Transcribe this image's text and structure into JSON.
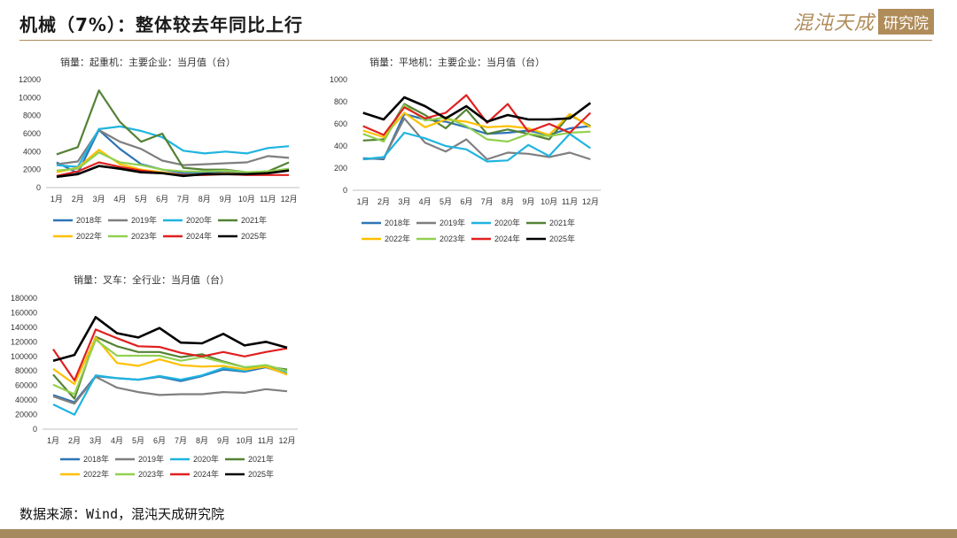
{
  "header": {
    "title": "机械（7%）：整体较去年同比上行",
    "logo_script": "混沌天成",
    "logo_box": "研究院"
  },
  "source": "数据来源：Wind，混沌天成研究院",
  "colors": {
    "2018年": "#2e75b6",
    "2019年": "#7f7f7f",
    "2020年": "#1fb4e0",
    "2021年": "#548235",
    "2022年": "#ffc000",
    "2023年": "#92d050",
    "2024年": "#e02020",
    "2025年": "#000000"
  },
  "chart_data": [
    {
      "type": "line",
      "title": "销量：起重机：主要企业：当月值（台）",
      "categories": [
        "1月",
        "2月",
        "3月",
        "4月",
        "5月",
        "6月",
        "7月",
        "8月",
        "9月",
        "10月",
        "11月",
        "12月"
      ],
      "ylim": [
        0,
        12000
      ],
      "yticks": [
        0,
        2000,
        4000,
        6000,
        8000,
        10000,
        12000
      ],
      "legend_position": "bottom",
      "series": [
        {
          "name": "2018年",
          "values": [
            2800,
            1600,
            6400,
            4300,
            2600,
            2000,
            1600,
            1600,
            1700,
            1500,
            1600,
            null
          ]
        },
        {
          "name": "2019年",
          "values": [
            2600,
            2900,
            6400,
            5100,
            4300,
            3000,
            2500,
            2600,
            2700,
            2800,
            3500,
            3300
          ]
        },
        {
          "name": "2020年",
          "values": [
            2500,
            2300,
            6500,
            6800,
            6300,
            5600,
            4100,
            3800,
            4000,
            3800,
            4400,
            4600
          ]
        },
        {
          "name": "2021年",
          "values": [
            3700,
            4500,
            10800,
            7300,
            5100,
            6000,
            2200,
            2000,
            2000,
            1700,
            1800,
            2800
          ]
        },
        {
          "name": "2022年",
          "values": [
            1700,
            2200,
            4200,
            2600,
            2000,
            1700,
            1400,
            1500,
            1600,
            1500,
            1600,
            1900
          ]
        },
        {
          "name": "2023年",
          "values": [
            1900,
            2100,
            3900,
            2800,
            2500,
            2000,
            1800,
            1800,
            1900,
            1700,
            1800,
            2100
          ]
        },
        {
          "name": "2024年",
          "values": [
            1300,
            1800,
            2800,
            2300,
            1900,
            1600,
            1400,
            1400,
            1500,
            1400,
            1400,
            1400
          ]
        },
        {
          "name": "2025年",
          "values": [
            1200,
            1500,
            2400,
            2100,
            1700,
            1600,
            1300,
            1500,
            1500,
            1500,
            1600,
            1900
          ]
        }
      ]
    },
    {
      "type": "line",
      "title": "销量：平地机：主要企业：当月值（台）",
      "categories": [
        "1月",
        "2月",
        "3月",
        "4月",
        "5月",
        "6月",
        "7月",
        "8月",
        "9月",
        "10月",
        "11月",
        "12月"
      ],
      "ylim": [
        0,
        1000
      ],
      "yticks": [
        0,
        200,
        400,
        600,
        800,
        1000
      ],
      "legend_position": "bottom",
      "series": [
        {
          "name": "2018年",
          "values": [
            290,
            280,
            690,
            640,
            620,
            570,
            510,
            520,
            540,
            500,
            560,
            580
          ]
        },
        {
          "name": "2019年",
          "values": [
            280,
            290,
            650,
            430,
            350,
            460,
            280,
            340,
            330,
            300,
            340,
            280
          ]
        },
        {
          "name": "2020年",
          "values": [
            280,
            300,
            520,
            470,
            400,
            370,
            260,
            270,
            410,
            310,
            510,
            380
          ]
        },
        {
          "name": "2021年",
          "values": [
            450,
            460,
            780,
            680,
            560,
            730,
            510,
            550,
            510,
            460,
            680,
            580
          ]
        },
        {
          "name": "2022年",
          "values": [
            540,
            480,
            700,
            570,
            640,
            620,
            570,
            580,
            560,
            500,
            690,
            570
          ]
        },
        {
          "name": "2023年",
          "values": [
            510,
            440,
            770,
            630,
            660,
            580,
            460,
            440,
            510,
            490,
            520,
            530
          ]
        },
        {
          "name": "2024年",
          "values": [
            580,
            500,
            750,
            650,
            700,
            860,
            610,
            780,
            530,
            600,
            520,
            700
          ]
        },
        {
          "name": "2025年",
          "values": [
            700,
            640,
            840,
            760,
            650,
            760,
            620,
            680,
            640,
            640,
            650,
            790
          ]
        }
      ]
    },
    {
      "type": "line",
      "title": "销量：叉车：全行业：当月值（台）",
      "categories": [
        "1月",
        "2月",
        "3月",
        "4月",
        "5月",
        "6月",
        "7月",
        "8月",
        "9月",
        "10月",
        "11月",
        "12月"
      ],
      "ylim": [
        0,
        180000
      ],
      "yticks": [
        0,
        20000,
        40000,
        60000,
        80000,
        100000,
        120000,
        140000,
        160000,
        180000
      ],
      "legend_position": "bottom",
      "series": [
        {
          "name": "2018年",
          "values": [
            47000,
            37000,
            73000,
            70000,
            68000,
            72000,
            66000,
            73000,
            82000,
            79000,
            85000,
            76000
          ]
        },
        {
          "name": "2019年",
          "values": [
            45000,
            35000,
            72000,
            57000,
            51000,
            47000,
            48000,
            48000,
            51000,
            50000,
            55000,
            52000
          ]
        },
        {
          "name": "2020年",
          "values": [
            34000,
            20000,
            74000,
            70000,
            68000,
            73000,
            68000,
            74000,
            84000,
            80000,
            88000,
            79000
          ]
        },
        {
          "name": "2021年",
          "values": [
            75000,
            42000,
            127000,
            114000,
            106000,
            106000,
            99000,
            103000,
            93000,
            85000,
            86000,
            82000
          ]
        },
        {
          "name": "2022年",
          "values": [
            83000,
            62000,
            126000,
            91000,
            87000,
            96000,
            88000,
            86000,
            87000,
            82000,
            86000,
            75000
          ]
        },
        {
          "name": "2023年",
          "values": [
            61000,
            48000,
            123000,
            101000,
            101000,
            101000,
            94000,
            99000,
            92000,
            85000,
            88000,
            80000
          ]
        },
        {
          "name": "2024年",
          "values": [
            110000,
            67000,
            137000,
            125000,
            114000,
            113000,
            105000,
            100000,
            106000,
            100000,
            106000,
            111000
          ]
        },
        {
          "name": "2025年",
          "values": [
            94000,
            102000,
            154000,
            132000,
            126000,
            139000,
            119000,
            118000,
            131000,
            115000,
            120000,
            112000
          ]
        }
      ]
    }
  ]
}
